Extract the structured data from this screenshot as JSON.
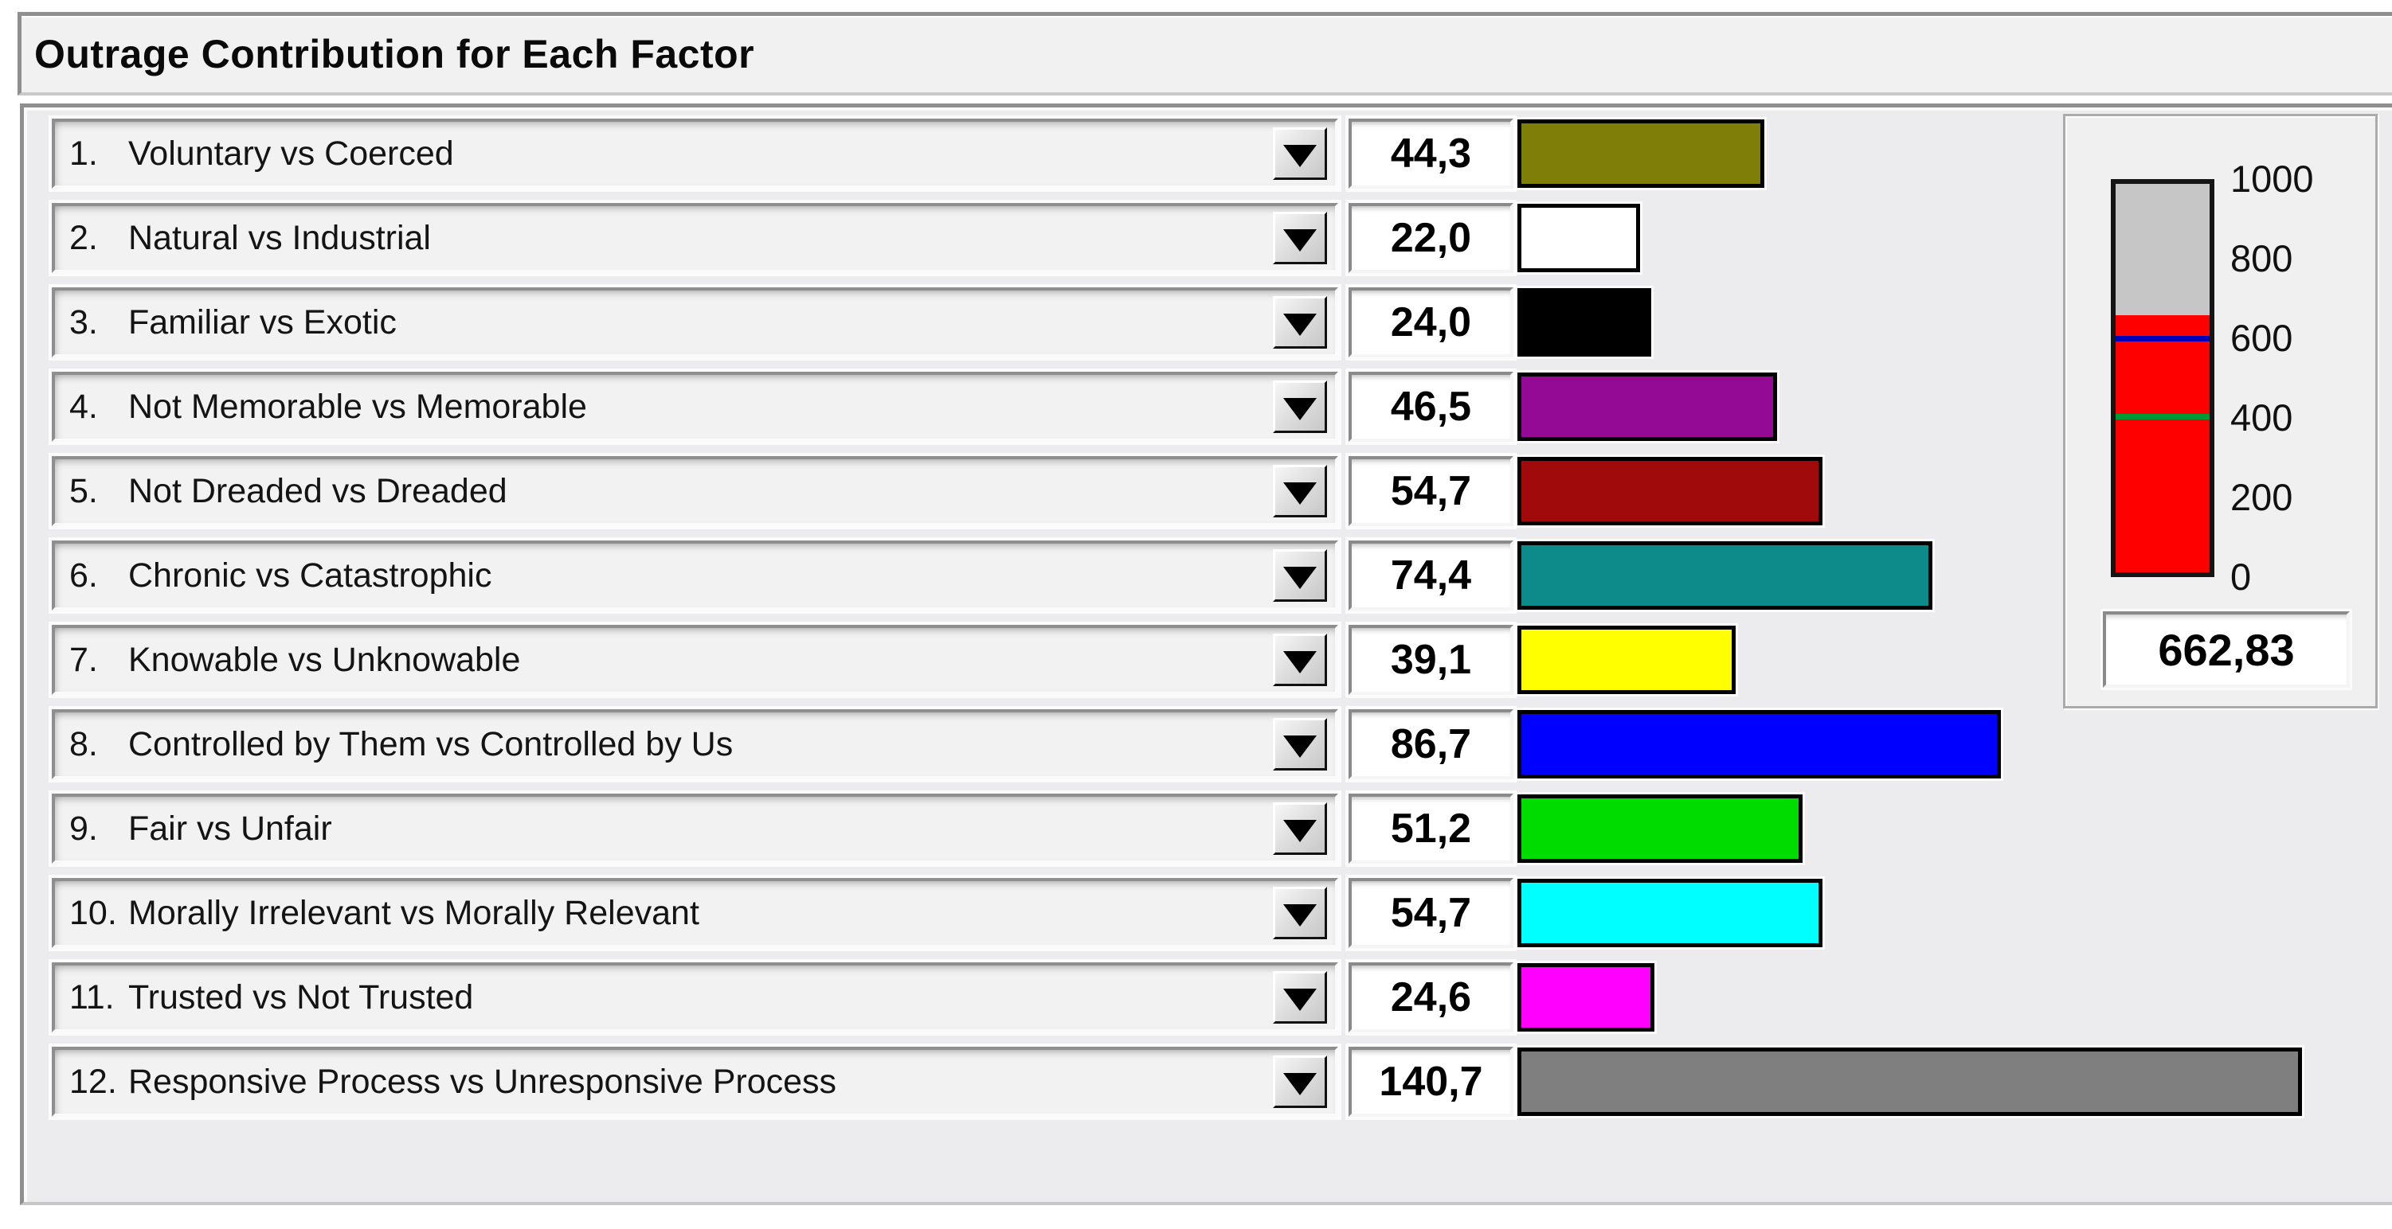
{
  "title": "Outrage Contribution for Each Factor",
  "rows": [
    {
      "num": "1.",
      "label": "Voluntary vs Coerced",
      "value": 44.3,
      "value_display": "44,3",
      "color": "#7E7E08",
      "color_name": "olive"
    },
    {
      "num": "2.",
      "label": "Natural vs Industrial",
      "value": 22.0,
      "value_display": "22,0",
      "color": "#FFFFFF",
      "color_name": "white"
    },
    {
      "num": "3.",
      "label": "Familiar vs Exotic",
      "value": 24.0,
      "value_display": "24,0",
      "color": "#000000",
      "color_name": "black"
    },
    {
      "num": "4.",
      "label": "Not Memorable vs Memorable",
      "value": 46.5,
      "value_display": "46,5",
      "color": "#940A94",
      "color_name": "purple"
    },
    {
      "num": "5.",
      "label": "Not Dreaded vs Dreaded",
      "value": 54.7,
      "value_display": "54,7",
      "color": "#A00A0A",
      "color_name": "dark-red"
    },
    {
      "num": "6.",
      "label": "Chronic vs Catastrophic",
      "value": 74.4,
      "value_display": "74,4",
      "color": "#0D8A8A",
      "color_name": "teal"
    },
    {
      "num": "7.",
      "label": "Knowable vs Unknowable",
      "value": 39.1,
      "value_display": "39,1",
      "color": "#FFFF00",
      "color_name": "yellow"
    },
    {
      "num": "8.",
      "label": "Controlled by Them vs Controlled by Us",
      "value": 86.7,
      "value_display": "86,7",
      "color": "#0000FF",
      "color_name": "blue"
    },
    {
      "num": "9.",
      "label": "Fair vs Unfair",
      "value": 51.2,
      "value_display": "51,2",
      "color": "#00DC00",
      "color_name": "green"
    },
    {
      "num": "10.",
      "label": "Morally Irrelevant vs Morally Relevant",
      "value": 54.7,
      "value_display": "54,7",
      "color": "#00FFFF",
      "color_name": "cyan"
    },
    {
      "num": "11.",
      "label": "Trusted vs Not Trusted",
      "value": 24.6,
      "value_display": "24,6",
      "color": "#FF00FF",
      "color_name": "magenta"
    },
    {
      "num": "12.",
      "label": "Responsive Process vs Unresponsive Process",
      "value": 140.7,
      "value_display": "140,7",
      "color": "#7F7F7F",
      "color_name": "gray"
    }
  ],
  "gauge": {
    "min": 0,
    "max": 1000,
    "ticks": [
      "1000",
      "800",
      "600",
      "400",
      "200",
      "0"
    ],
    "value": 662.83,
    "value_display": "662,83",
    "fill_color": "#FF0000",
    "empty_color": "#C6C6C6",
    "markers": [
      {
        "value": 600,
        "color": "#0000BB",
        "name": "blue-threshold"
      },
      {
        "value": 400,
        "color": "#009933",
        "name": "green-threshold"
      }
    ]
  },
  "chart_data": {
    "type": "bar",
    "title": "Outrage Contribution for Each Factor",
    "categories": [
      "Voluntary vs Coerced",
      "Natural vs Industrial",
      "Familiar vs Exotic",
      "Not Memorable vs Memorable",
      "Not Dreaded vs Dreaded",
      "Chronic vs Catastrophic",
      "Knowable vs Unknowable",
      "Controlled by Them vs Controlled by Us",
      "Fair vs Unfair",
      "Morally Irrelevant vs Morally Relevant",
      "Trusted vs Not Trusted",
      "Responsive Process vs Unresponsive Process"
    ],
    "values": [
      44.3,
      22.0,
      24.0,
      46.5,
      54.7,
      74.4,
      39.1,
      86.7,
      51.2,
      54.7,
      24.6,
      140.7
    ],
    "bar_colors": [
      "#7E7E08",
      "#FFFFFF",
      "#000000",
      "#940A94",
      "#A00A0A",
      "#0D8A8A",
      "#FFFF00",
      "#0000FF",
      "#00DC00",
      "#00FFFF",
      "#FF00FF",
      "#7F7F7F"
    ],
    "orientation": "horizontal",
    "gauge_total": {
      "value": 662.83,
      "range": [
        0,
        1000
      ],
      "tick_step": 200,
      "markers": [
        600,
        400
      ]
    }
  }
}
